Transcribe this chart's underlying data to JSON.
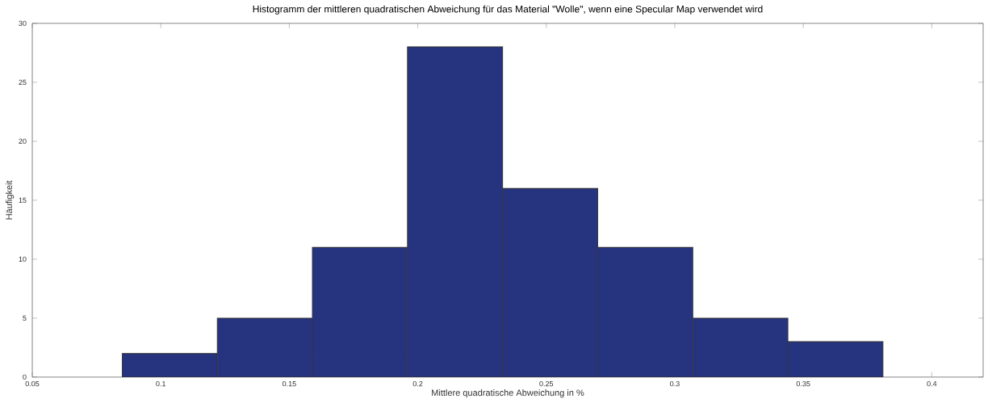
{
  "chart_data": {
    "type": "histogram",
    "title": "Histogramm der mittleren quadratischen Abweichung für das Material \"Wolle\", wenn eine Specular Map verwendet wird",
    "xlabel": "Mittlere quadratische Abweichung in %",
    "ylabel": "Häufigkeit",
    "bins": [
      0.085,
      0.122,
      0.159,
      0.196,
      0.233,
      0.27,
      0.307,
      0.344,
      0.381
    ],
    "values": [
      2,
      5,
      11,
      28,
      16,
      11,
      5,
      3
    ],
    "color": "#26337f",
    "xlim": [
      0.05,
      0.42
    ],
    "ylim": [
      0,
      30
    ],
    "xticks": [
      0.05,
      0.1,
      0.15,
      0.2,
      0.25,
      0.3,
      0.35,
      0.4
    ],
    "yticks": [
      0,
      5,
      10,
      15,
      20,
      25,
      30
    ]
  }
}
